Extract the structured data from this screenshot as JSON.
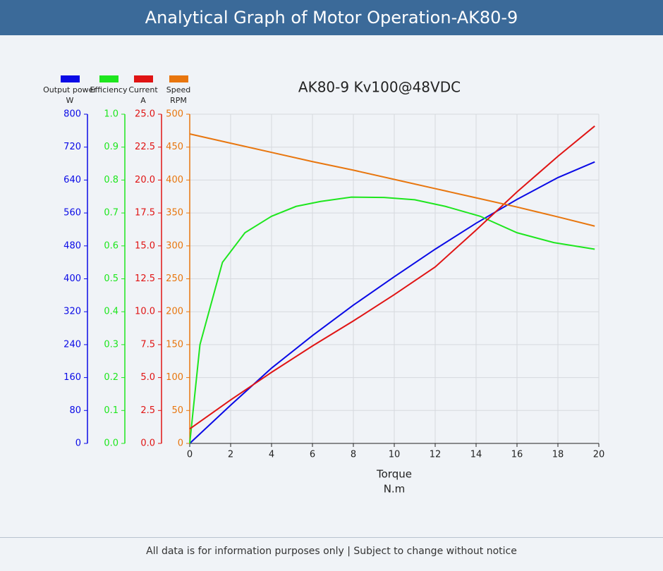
{
  "header": {
    "title": "Analytical Graph of Motor Operation-AK80-9"
  },
  "footer": {
    "text": "All data is for information purposes only | Subject to change without notice"
  },
  "chart_data": {
    "type": "line",
    "title": "AK80-9 Kv100@48VDC",
    "xlabel": "Torque",
    "xlabel_unit": "N.m",
    "xlim": [
      0,
      20
    ],
    "xticks": [
      0,
      2,
      4,
      6,
      8,
      10,
      12,
      14,
      16,
      18,
      20
    ],
    "grid": true,
    "series": [
      {
        "name": "Output power",
        "unit": "W",
        "color": "#0a0ae6",
        "axis": "y",
        "ylim": [
          0,
          800
        ],
        "yticks": [
          0,
          80,
          160,
          240,
          320,
          400,
          480,
          560,
          640,
          720,
          800
        ],
        "x": [
          0,
          2,
          4,
          6,
          8,
          10,
          12,
          14,
          16,
          18,
          19.8
        ],
        "values": [
          0,
          93,
          183,
          262,
          336,
          405,
          472,
          535,
          593,
          646,
          684
        ]
      },
      {
        "name": "Efficiency",
        "color": "#1ee61e",
        "axis": "y2",
        "ylim": [
          0,
          1
        ],
        "yticks": [
          {
            "value": 0,
            "label": "0.0"
          },
          0.1,
          0.2,
          0.3,
          0.4,
          0.5,
          0.6,
          0.7,
          0.8,
          0.9,
          {
            "value": 1,
            "label": "1.0"
          }
        ],
        "x": [
          0,
          0.5,
          1.6,
          2.7,
          4,
          5.2,
          6.4,
          7.9,
          9.5,
          11,
          12.5,
          14.2,
          16,
          17.8,
          19.8
        ],
        "values": [
          0,
          0.3,
          0.55,
          0.64,
          0.69,
          0.72,
          0.735,
          0.748,
          0.747,
          0.74,
          0.72,
          0.69,
          0.64,
          0.61,
          0.59
        ]
      },
      {
        "name": "Current",
        "unit": "A",
        "color": "#e01414",
        "axis": "y3",
        "ylim": [
          0,
          25
        ],
        "yticks": [
          {
            "value": 0,
            "label": "0.0"
          },
          2.5,
          {
            "value": 5,
            "label": "5.0"
          },
          7.5,
          {
            "value": 10,
            "label": "10.0"
          },
          12.5,
          {
            "value": 15,
            "label": "15.0"
          },
          17.5,
          {
            "value": 20,
            "label": "20.0"
          },
          22.5,
          {
            "value": 25,
            "label": "25.0"
          }
        ],
        "x": [
          0,
          2,
          4,
          6,
          8,
          10,
          12,
          14,
          16,
          18,
          19.8
        ],
        "values": [
          1.1,
          3.3,
          5.4,
          7.4,
          9.3,
          11.3,
          13.4,
          16.2,
          19.1,
          21.8,
          24.1
        ]
      },
      {
        "name": "Speed",
        "unit": "RPM",
        "color": "#e8760e",
        "axis": "y4",
        "ylim": [
          0,
          500
        ],
        "yticks": [
          0,
          50,
          100,
          150,
          200,
          250,
          300,
          350,
          400,
          450,
          500
        ],
        "x": [
          0,
          2,
          4,
          6,
          8,
          10,
          12,
          14,
          16,
          18,
          19.8
        ],
        "values": [
          470,
          456,
          442,
          428,
          415,
          401,
          387,
          373,
          359,
          344,
          330
        ]
      }
    ]
  }
}
